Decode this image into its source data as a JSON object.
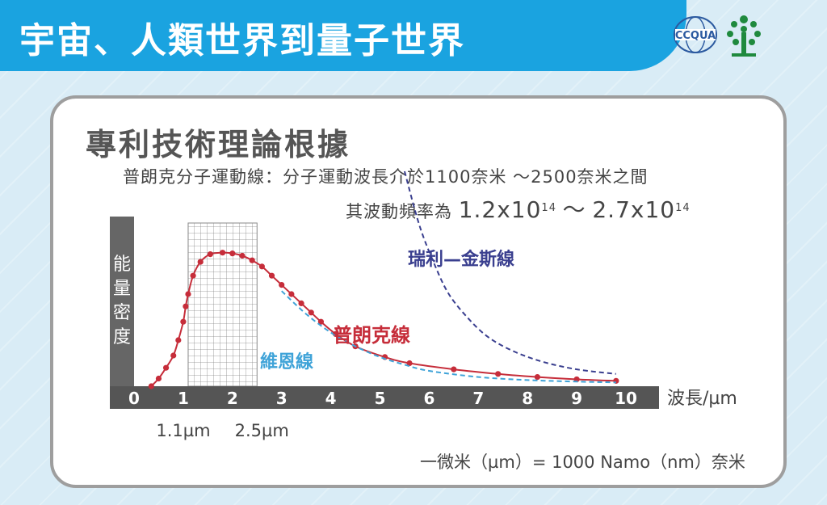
{
  "banner": {
    "title": "宇宙、人類世界到量子世界",
    "logo_text": "CCQUA"
  },
  "section": {
    "title": "專利技術理論根據",
    "info_line1": "普朗克分子運動線：分子運動波長介於1100奈米 ～2500奈米之間",
    "info_line2_prefix": "其波動頻率為",
    "freq_low": "1.2x10",
    "freq_low_exp": "14",
    "freq_sep": "～",
    "freq_high": "2.7x10",
    "freq_high_exp": "14"
  },
  "chart_data": {
    "type": "line",
    "ylabel": "能量密度",
    "xlabel": "波長/µm",
    "xlim": [
      0,
      10
    ],
    "x_ticks": [
      "0",
      "1",
      "2",
      "3",
      "4",
      "5",
      "6",
      "7",
      "8",
      "9",
      "10"
    ],
    "highlight_range": [
      1.1,
      2.5
    ],
    "highlight_labels": [
      "1.1µm",
      "2.5µm"
    ],
    "series": [
      {
        "name": "普朗克線",
        "color": "#c62d3a",
        "style": "solid-with-dots",
        "x": [
          0.35,
          0.5,
          0.65,
          0.8,
          0.9,
          1.0,
          1.05,
          1.1,
          1.2,
          1.35,
          1.55,
          1.8,
          2.0,
          2.2,
          2.4,
          2.6,
          2.8,
          3.0,
          3.2,
          3.4,
          3.6,
          3.8,
          4.1,
          4.5,
          5.1,
          5.6,
          6.5,
          7.4,
          8.2,
          9.0,
          9.8
        ],
        "y": [
          0.0,
          0.05,
          0.12,
          0.2,
          0.3,
          0.42,
          0.52,
          0.6,
          0.72,
          0.81,
          0.86,
          0.87,
          0.865,
          0.85,
          0.82,
          0.78,
          0.72,
          0.66,
          0.6,
          0.54,
          0.48,
          0.42,
          0.34,
          0.26,
          0.19,
          0.15,
          0.11,
          0.08,
          0.06,
          0.045,
          0.035
        ]
      },
      {
        "name": "維恩線",
        "color": "#3fa3d8",
        "style": "dashed",
        "x": [
          3.0,
          3.5,
          4.0,
          4.5,
          5.0,
          5.5,
          6.0,
          7.0,
          8.0,
          9.0,
          9.8
        ],
        "y": [
          0.62,
          0.47,
          0.35,
          0.26,
          0.19,
          0.14,
          0.1,
          0.06,
          0.04,
          0.03,
          0.025
        ]
      },
      {
        "name": "瑞利—金斯線",
        "color": "#3a3f8f",
        "style": "dashed",
        "x": [
          5.5,
          5.8,
          6.1,
          6.4,
          6.8,
          7.2,
          7.7,
          8.3,
          9.0,
          9.8
        ],
        "y": [
          1.4,
          1.05,
          0.8,
          0.6,
          0.44,
          0.32,
          0.23,
          0.16,
          0.11,
          0.08
        ]
      }
    ]
  },
  "footnote": "一微米（µm）= 1000 Namo（nm）奈米"
}
